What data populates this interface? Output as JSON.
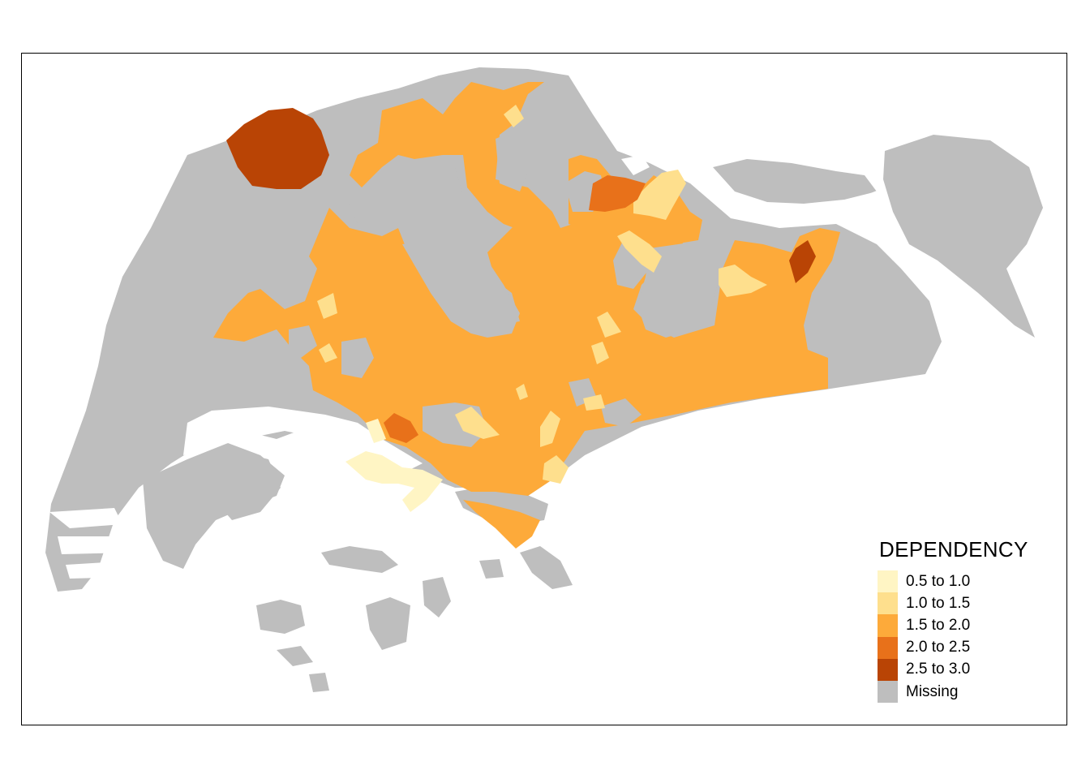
{
  "legend": {
    "title": "DEPENDENCY",
    "items": [
      {
        "label": "0.5 to 1.0",
        "color": "#FFF5C4"
      },
      {
        "label": "1.0 to 1.5",
        "color": "#FEDF8D"
      },
      {
        "label": "1.5 to 2.0",
        "color": "#FDAA3A"
      },
      {
        "label": "2.0 to 2.5",
        "color": "#E8711A"
      },
      {
        "label": "2.5 to 3.0",
        "color": "#B94405"
      },
      {
        "label": "Missing",
        "color": "#BEBEBE"
      }
    ]
  },
  "colors": {
    "missing": "#BEBEBE",
    "c05_10": "#FFF5C4",
    "c10_15": "#FEDF8D",
    "c15_20": "#FDAA3A",
    "c20_25": "#E8711A",
    "c25_30": "#B94405"
  }
}
